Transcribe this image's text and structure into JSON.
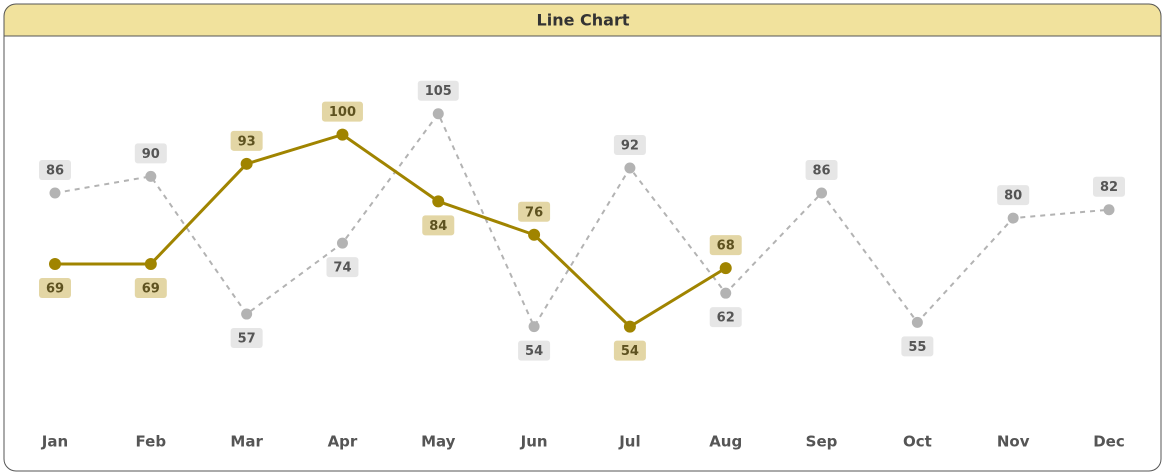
{
  "chart_data": {
    "type": "line",
    "title": "Line Chart",
    "categories": [
      "Jan",
      "Feb",
      "Mar",
      "Apr",
      "May",
      "Jun",
      "Jul",
      "Aug",
      "Sep",
      "Oct",
      "Nov",
      "Dec"
    ],
    "series": [
      {
        "color": "#a08400",
        "dashed": false,
        "values": [
          69,
          69,
          93,
          100,
          84,
          76,
          54,
          68,
          null,
          null,
          null,
          null
        ]
      },
      {
        "color": "#b3b3b3",
        "dashed": true,
        "values": [
          86,
          90,
          57,
          74,
          105,
          54,
          92,
          62,
          86,
          55,
          80,
          82
        ]
      }
    ],
    "ylim": [
      40,
      115
    ]
  }
}
